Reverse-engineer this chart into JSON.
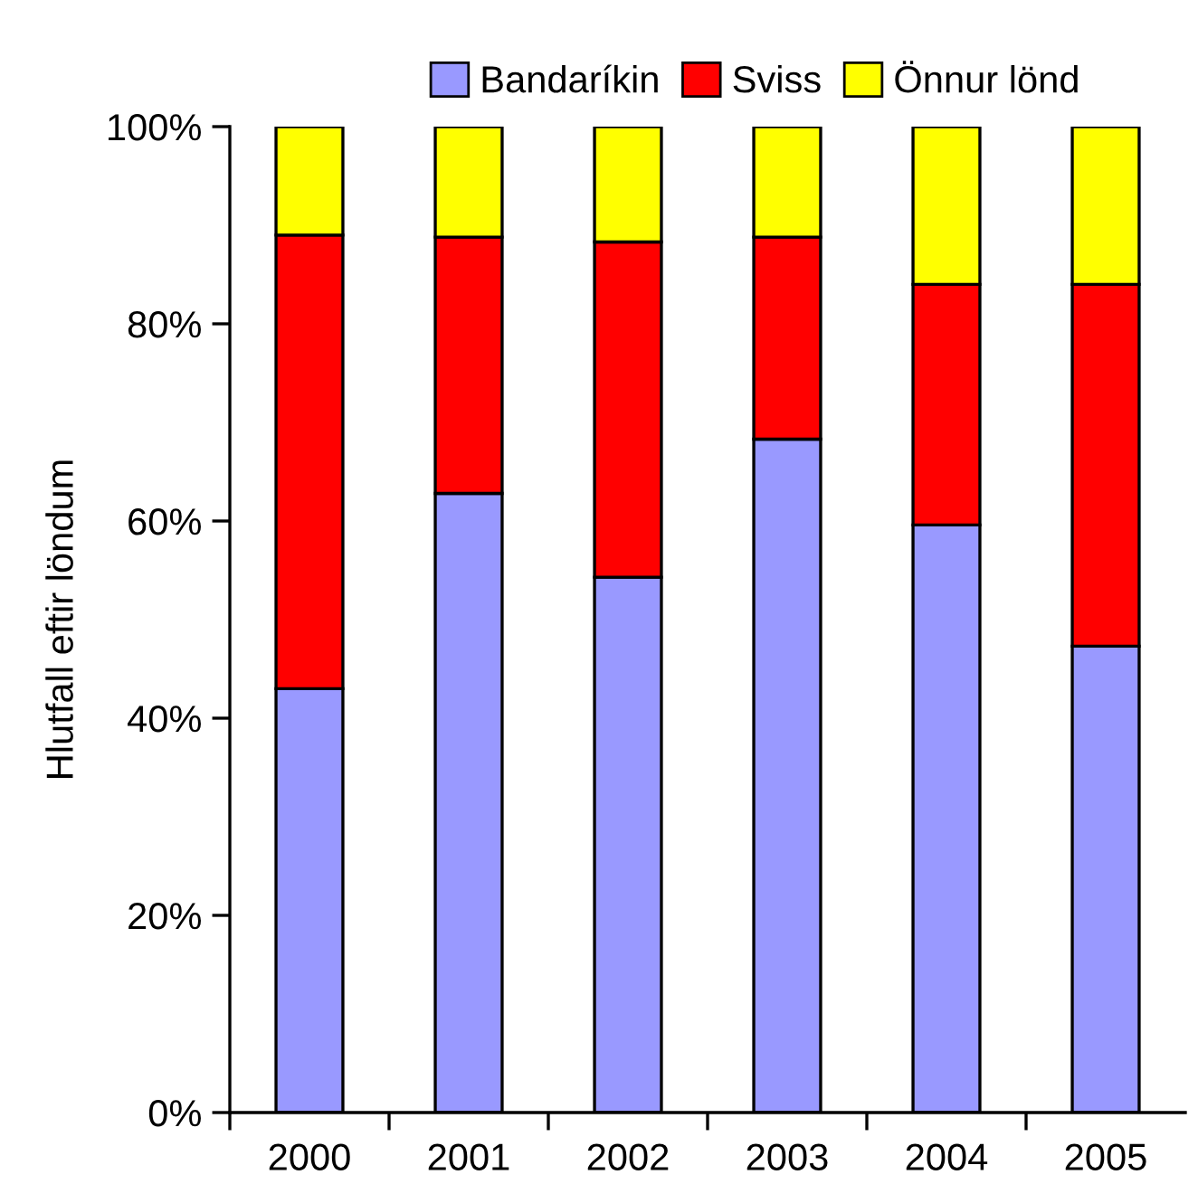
{
  "chart_data": {
    "type": "bar",
    "stacked": true,
    "ylabel": "Hlutfall eftir löndum",
    "categories": [
      "2000",
      "2001",
      "2002",
      "2003",
      "2004",
      "2005"
    ],
    "series": [
      {
        "name": "Bandaríkin",
        "color": "#9999ff",
        "values": [
          43,
          62.8,
          54.3,
          68.3,
          59.6,
          47.3
        ]
      },
      {
        "name": "Sviss",
        "color": "#ff0000",
        "values": [
          46,
          26,
          34,
          20.5,
          24.4,
          36.7
        ]
      },
      {
        "name": "Önnur lönd",
        "color": "#ffff00",
        "values": [
          11,
          11.2,
          11.7,
          11.2,
          16,
          16
        ]
      }
    ],
    "ylim": [
      0,
      100
    ],
    "yticks": [
      {
        "value": 0,
        "label": "0%"
      },
      {
        "value": 20,
        "label": "20%"
      },
      {
        "value": 40,
        "label": "40%"
      },
      {
        "value": 60,
        "label": "60%"
      },
      {
        "value": 80,
        "label": "80%"
      },
      {
        "value": 100,
        "label": "100%"
      }
    ],
    "grid": false,
    "legend": "top"
  }
}
